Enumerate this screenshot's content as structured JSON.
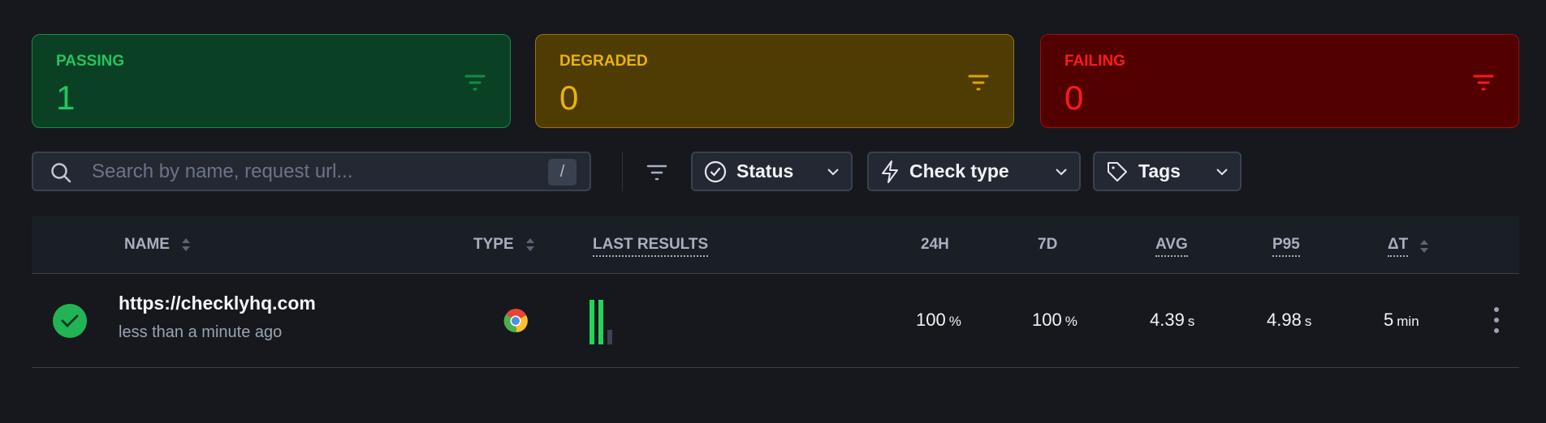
{
  "summary": [
    {
      "label": "PASSING",
      "count": "1",
      "color": "#22c55e"
    },
    {
      "label": "DEGRADED",
      "count": "0",
      "color": "#eab308"
    },
    {
      "label": "FAILING",
      "count": "0",
      "color": "#ff1a1a"
    }
  ],
  "toolbar": {
    "search_placeholder": "Search by name, request url...",
    "search_value": "",
    "shortcut": "/",
    "filters": [
      "Status",
      "Check type",
      "Tags"
    ]
  },
  "table": {
    "columns": [
      "NAME",
      "TYPE",
      "LAST RESULTS",
      "24H",
      "7D",
      "AVG",
      "P95",
      "ΔT"
    ],
    "rows": [
      {
        "status": "passing",
        "name": "https://checklyhq.com",
        "subtitle": "less than a minute ago",
        "type_icon": "chrome-icon",
        "last_results": [
          "pass",
          "pass",
          "pending"
        ],
        "h24": "100",
        "h24_unit": "%",
        "d7": "100",
        "d7_unit": "%",
        "avg": "4.39",
        "avg_unit": "s",
        "p95": "4.98",
        "p95_unit": "s",
        "dt": "5",
        "dt_unit": "min"
      }
    ]
  }
}
